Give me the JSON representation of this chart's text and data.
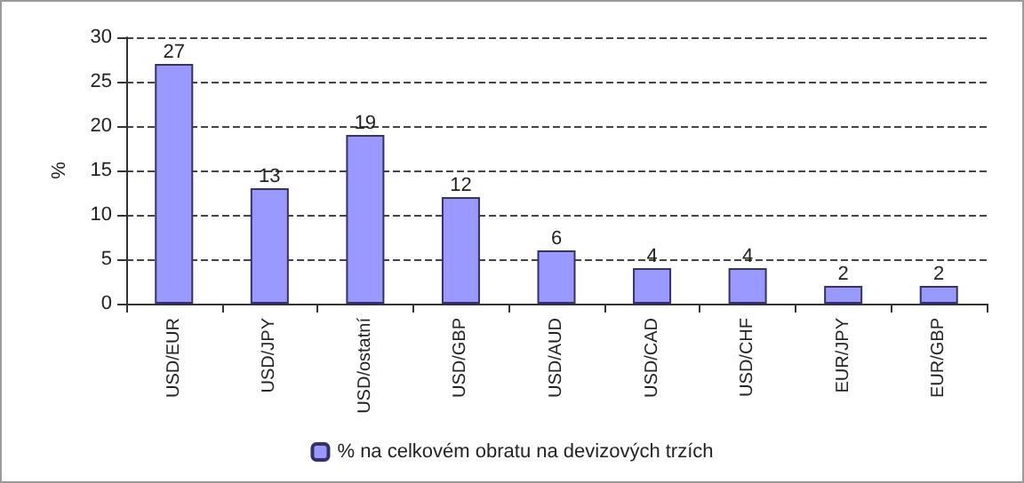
{
  "chart_data": {
    "type": "bar",
    "ylabel": "%",
    "categories": [
      "USD/EUR",
      "USD/JPY",
      "USD/ostatní",
      "USD/GBP",
      "USD/AUD",
      "USD/CAD",
      "USD/CHF",
      "EUR/JPY",
      "EUR/GBP"
    ],
    "series": [
      {
        "name": "% na celkovém obratu na devizových trzích",
        "color": "#9999ff",
        "values": [
          27,
          13,
          19,
          12,
          6,
          4,
          4,
          2,
          2
        ]
      }
    ],
    "ylim": [
      0,
      30
    ],
    "yticks": [
      0,
      5,
      10,
      15,
      20,
      25,
      30
    ],
    "grid": "y",
    "legend": "bottom",
    "data_labels": true
  }
}
